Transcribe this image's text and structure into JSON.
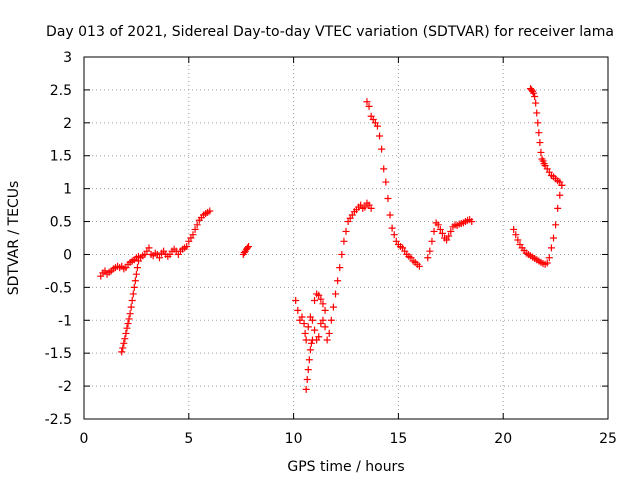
{
  "chart_data": {
    "type": "scatter",
    "title": "Day 013 of 2021, Sidereal Day-to-day VTEC variation (SDTVAR) for receiver lama",
    "xlabel": "GPS time / hours",
    "ylabel": "SDTVAR / TECUs",
    "xlim": [
      0,
      25
    ],
    "ylim": [
      -2.5,
      3
    ],
    "xticks": [
      0,
      5,
      10,
      15,
      20,
      25
    ],
    "yticks": [
      -2.5,
      -2,
      -1.5,
      -1,
      -0.5,
      0,
      0.5,
      1,
      1.5,
      2,
      2.5,
      3
    ],
    "grid": true,
    "marker": "+",
    "color": "#ff0000",
    "segments": [
      {
        "x": [
          0.8,
          0.9,
          1.0,
          1.1,
          1.2,
          1.3,
          1.4,
          1.5,
          1.6,
          1.7,
          1.8,
          1.9,
          2.0,
          2.1,
          2.2,
          2.3,
          2.4,
          2.5,
          2.6,
          2.7,
          2.8,
          2.9,
          3.0,
          3.1,
          3.2,
          3.3,
          3.4,
          3.5,
          3.6,
          3.7,
          3.8,
          3.9,
          4.0,
          4.1,
          4.2,
          4.3,
          4.4,
          4.5,
          4.6,
          4.7,
          4.8,
          4.9,
          5.0,
          5.1,
          5.2,
          5.3,
          5.4,
          5.5,
          5.6,
          5.7,
          5.8,
          5.9,
          6.0
        ],
        "y": [
          -0.33,
          -0.28,
          -0.25,
          -0.3,
          -0.27,
          -0.25,
          -0.22,
          -0.2,
          -0.18,
          -0.2,
          -0.18,
          -0.22,
          -0.2,
          -0.15,
          -0.12,
          -0.1,
          -0.08,
          -0.05,
          -0.03,
          -0.05,
          -0.02,
          0.0,
          0.05,
          0.1,
          0.0,
          -0.02,
          0.02,
          0.0,
          -0.05,
          0.02,
          0.05,
          0.0,
          -0.03,
          0.0,
          0.05,
          0.08,
          0.05,
          0.0,
          0.05,
          0.08,
          0.1,
          0.12,
          0.2,
          0.25,
          0.3,
          0.38,
          0.45,
          0.52,
          0.56,
          0.6,
          0.62,
          0.64,
          0.66
        ]
      },
      {
        "x": [
          1.8,
          1.85,
          1.9,
          1.95,
          2.0,
          2.05,
          2.1,
          2.15,
          2.2,
          2.25,
          2.3,
          2.35,
          2.4,
          2.45,
          2.5,
          2.55,
          2.6
        ],
        "y": [
          -1.48,
          -1.42,
          -1.35,
          -1.28,
          -1.2,
          -1.12,
          -1.05,
          -0.98,
          -0.9,
          -0.8,
          -0.7,
          -0.6,
          -0.5,
          -0.4,
          -0.3,
          -0.2,
          -0.1
        ]
      },
      {
        "x": [
          7.6,
          7.65,
          7.7,
          7.75,
          7.8,
          7.85
        ],
        "y": [
          0.0,
          0.03,
          0.05,
          0.08,
          0.1,
          0.12
        ]
      },
      {
        "x": [
          10.1,
          10.2,
          10.3,
          10.4,
          10.5,
          10.55,
          10.6,
          10.7,
          10.8,
          10.9,
          11.0,
          11.1,
          11.2,
          11.3,
          11.4,
          11.5,
          11.6,
          11.7,
          11.8,
          11.9,
          12.0,
          12.1,
          12.2,
          12.3,
          12.4,
          12.5,
          12.6,
          12.7,
          12.8,
          12.9,
          13.0,
          13.1,
          13.2,
          13.3,
          13.4,
          13.5,
          13.6,
          13.7
        ],
        "y": [
          -0.7,
          -0.85,
          -1.0,
          -0.95,
          -1.05,
          -1.2,
          -1.3,
          -1.1,
          -0.95,
          -1.0,
          -1.15,
          -1.3,
          -1.25,
          -1.05,
          -1.0,
          -1.1,
          -1.3,
          -1.2,
          -1.0,
          -0.8,
          -0.6,
          -0.4,
          -0.2,
          0.0,
          0.2,
          0.35,
          0.5,
          0.55,
          0.6,
          0.65,
          0.68,
          0.72,
          0.75,
          0.7,
          0.72,
          0.78,
          0.75,
          0.7
        ]
      },
      {
        "x": [
          10.6,
          10.65,
          10.7,
          10.75,
          10.8,
          10.85,
          10.9
        ],
        "y": [
          -2.05,
          -1.9,
          -1.75,
          -1.6,
          -1.45,
          -1.35,
          -1.3
        ]
      },
      {
        "x": [
          11.0,
          11.1,
          11.2,
          11.3,
          11.4,
          11.5
        ],
        "y": [
          -0.7,
          -0.6,
          -0.62,
          -0.68,
          -0.75,
          -0.85
        ]
      },
      {
        "x": [
          13.5,
          13.6,
          13.7,
          13.8,
          13.9,
          14.0,
          14.1,
          14.2,
          14.3,
          14.4,
          14.5,
          14.6,
          14.7,
          14.8,
          14.9,
          15.0,
          15.1,
          15.2,
          15.3,
          15.4,
          15.5,
          15.6,
          15.7,
          15.8,
          15.9,
          16.0
        ],
        "y": [
          2.32,
          2.25,
          2.1,
          2.05,
          2.0,
          1.95,
          1.8,
          1.6,
          1.3,
          1.1,
          0.85,
          0.6,
          0.4,
          0.3,
          0.2,
          0.15,
          0.12,
          0.1,
          0.05,
          0.0,
          -0.03,
          -0.05,
          -0.1,
          -0.12,
          -0.15,
          -0.18
        ]
      },
      {
        "x": [
          16.4,
          16.5,
          16.6,
          16.7,
          16.8,
          16.9,
          17.0,
          17.1,
          17.2,
          17.3,
          17.4,
          17.5,
          17.6,
          17.7,
          17.8,
          17.9,
          18.0,
          18.1,
          18.2,
          18.3,
          18.4,
          18.5
        ],
        "y": [
          -0.05,
          0.05,
          0.2,
          0.35,
          0.48,
          0.45,
          0.38,
          0.32,
          0.25,
          0.22,
          0.28,
          0.35,
          0.42,
          0.45,
          0.44,
          0.46,
          0.47,
          0.48,
          0.5,
          0.52,
          0.53,
          0.5
        ]
      },
      {
        "x": [
          20.5,
          20.6,
          20.7,
          20.8,
          20.9,
          21.0,
          21.1,
          21.2,
          21.3,
          21.4,
          21.5,
          21.6,
          21.7,
          21.8,
          21.9,
          22.0,
          22.1,
          22.2,
          22.3,
          22.4,
          22.5,
          22.6,
          22.7,
          22.8
        ],
        "y": [
          0.38,
          0.3,
          0.22,
          0.15,
          0.1,
          0.06,
          0.02,
          0.0,
          -0.02,
          -0.04,
          -0.06,
          -0.08,
          -0.1,
          -0.12,
          -0.14,
          -0.15,
          -0.13,
          -0.05,
          0.1,
          0.25,
          0.45,
          0.7,
          0.9,
          1.05
        ]
      },
      {
        "x": [
          21.3,
          21.35,
          21.4,
          21.45,
          21.5,
          21.55,
          21.6,
          21.65,
          21.7,
          21.75,
          21.8,
          21.85,
          21.9,
          21.95,
          22.0,
          22.1,
          22.2,
          22.3,
          22.4,
          22.5,
          22.6,
          22.7,
          22.8
        ],
        "y": [
          2.52,
          2.5,
          2.48,
          2.45,
          2.4,
          2.3,
          2.15,
          2.0,
          1.85,
          1.7,
          1.55,
          1.45,
          1.42,
          1.38,
          1.35,
          1.3,
          1.25,
          1.2,
          1.18,
          1.15,
          1.12,
          1.1,
          1.05
        ]
      }
    ]
  }
}
